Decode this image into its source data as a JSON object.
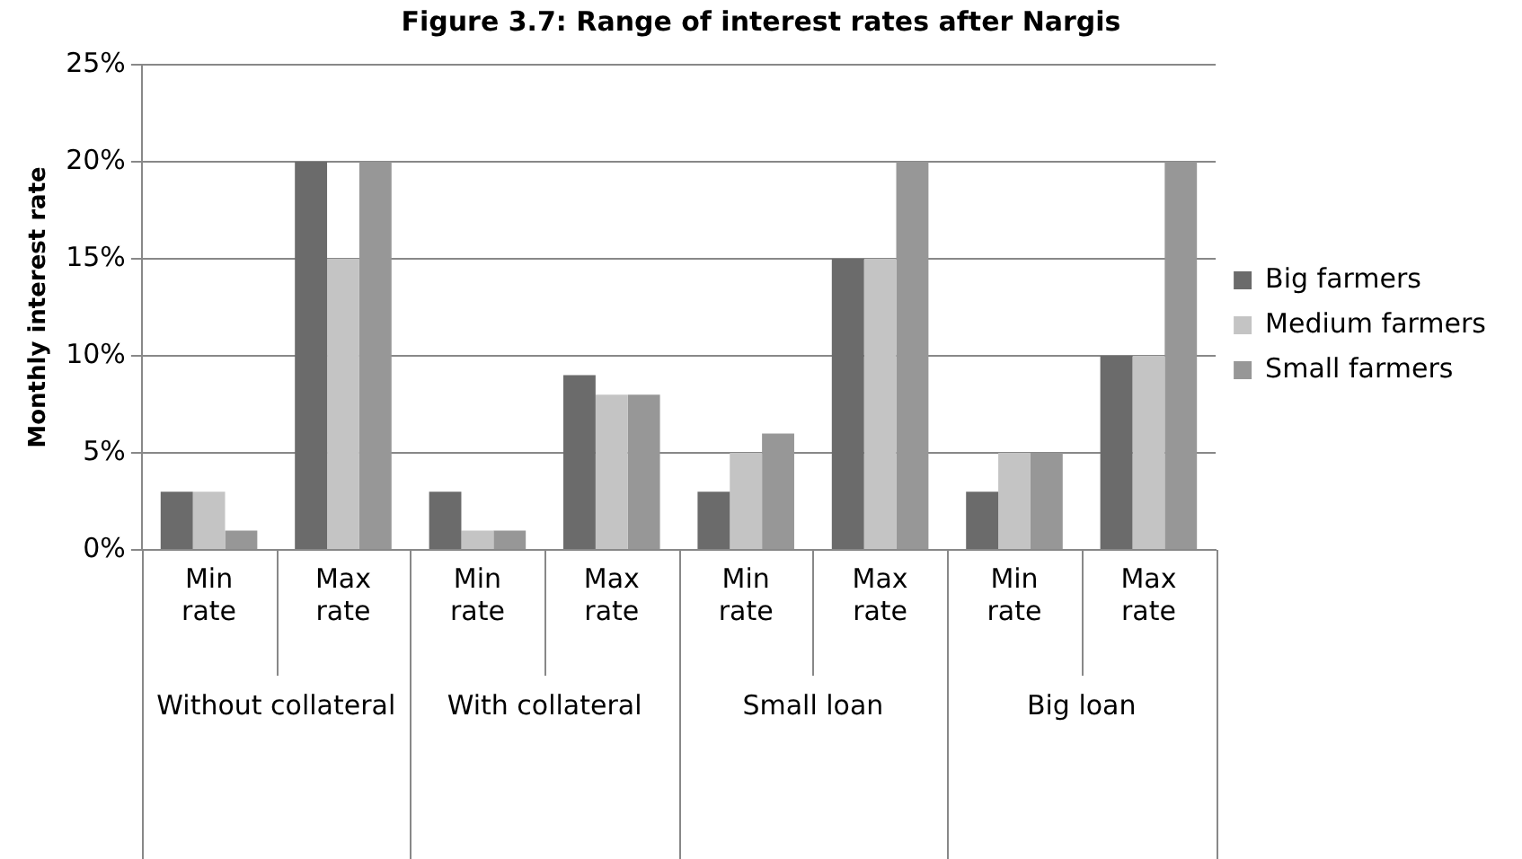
{
  "chart_data": {
    "type": "bar",
    "title": "Figure 3.7: Range of interest rates after Nargis",
    "ylabel": "Monthly interest rate",
    "categories": [
      "Min rate",
      "Max rate",
      "Min rate",
      "Max rate",
      "Min rate",
      "Max rate",
      "Min rate",
      "Max rate"
    ],
    "annotations": [
      "Without collateral",
      "With collateral",
      "Small loan",
      "Big loan"
    ],
    "series": [
      {
        "name": "Big farmers",
        "color": "#6b6b6b",
        "values": [
          3,
          20,
          3,
          9,
          3,
          15,
          3,
          10
        ]
      },
      {
        "name": "Medium farmers",
        "color": "#c4c4c4",
        "values": [
          3,
          15,
          1,
          8,
          5,
          15,
          5,
          10
        ]
      },
      {
        "name": "Small farmers",
        "color": "#979797",
        "values": [
          1,
          20,
          1,
          8,
          6,
          20,
          5,
          20
        ]
      }
    ],
    "ylim": [
      0,
      25
    ],
    "yticks": [
      {
        "value": 0,
        "label": "0%"
      },
      {
        "value": 5,
        "label": "5%"
      },
      {
        "value": 10,
        "label": "10%"
      },
      {
        "value": 15,
        "label": "15%"
      },
      {
        "value": 20,
        "label": "20%"
      },
      {
        "value": 25,
        "label": "25%"
      }
    ],
    "grid": "y",
    "legend": "right"
  }
}
